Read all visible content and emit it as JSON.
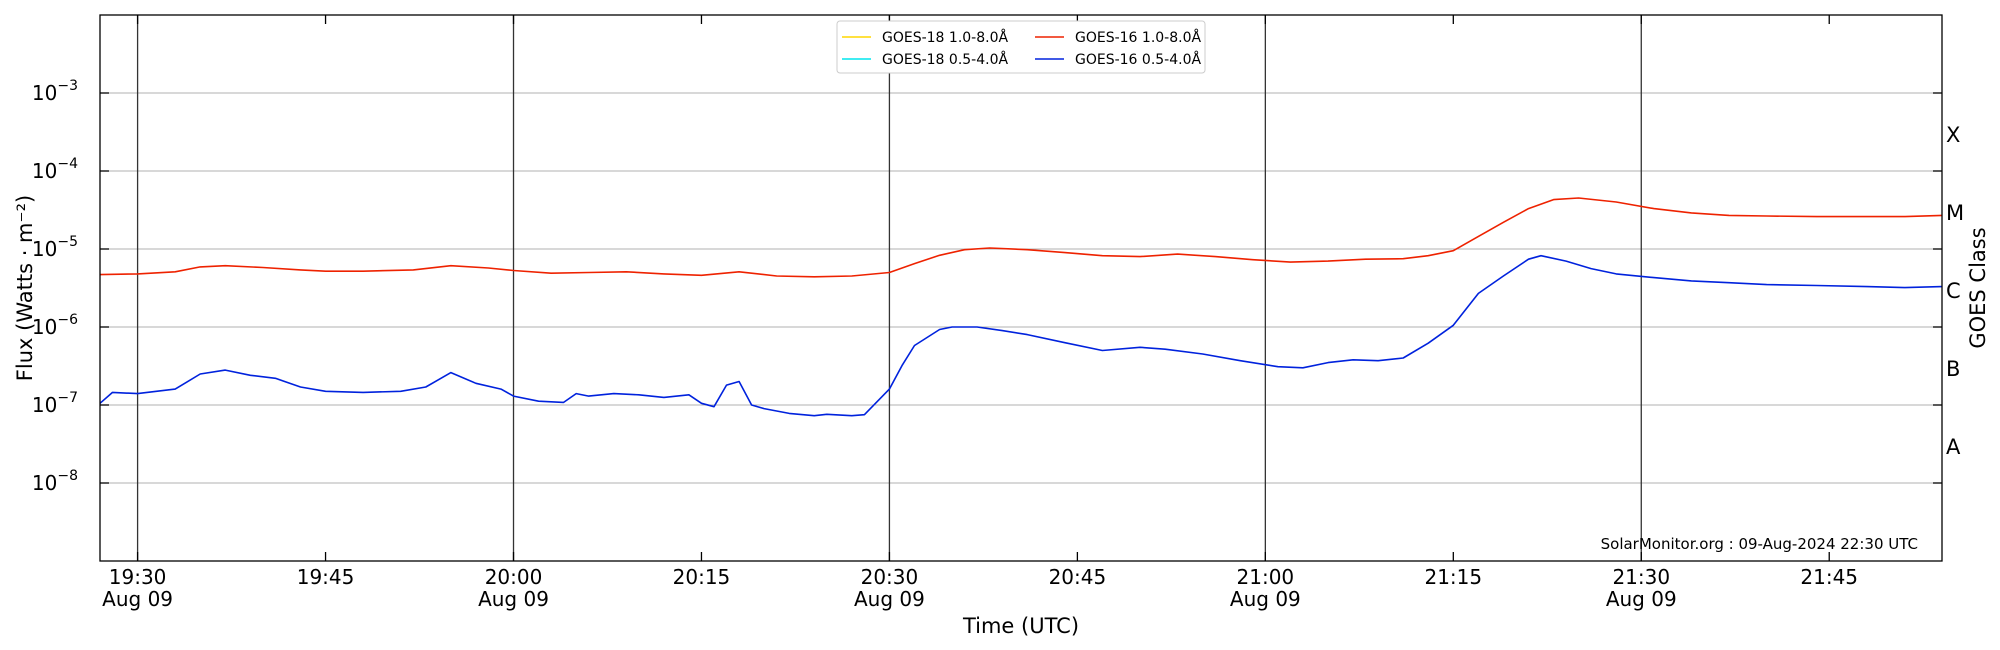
{
  "chart_data": {
    "type": "line",
    "title": "",
    "xlabel": "Time (UTC)",
    "ylabel": "Flux (Watts · m⁻²)",
    "y2label": "GOES Class",
    "yscale": "log",
    "ylim": [
      1e-09,
      0.01
    ],
    "xlim": [
      "19:27",
      "21:54"
    ],
    "grid": "horizontal",
    "legend_position": "top-center",
    "credit": "SolarMonitor.org : 09-Aug-2024 22:30 UTC",
    "x_ticks": [
      {
        "t": "19:30",
        "line1": "19:30",
        "line2": "Aug 09"
      },
      {
        "t": "19:45",
        "line1": "19:45",
        "line2": ""
      },
      {
        "t": "20:00",
        "line1": "20:00",
        "line2": "Aug 09"
      },
      {
        "t": "20:15",
        "line1": "20:15",
        "line2": ""
      },
      {
        "t": "20:30",
        "line1": "20:30",
        "line2": "Aug 09"
      },
      {
        "t": "20:45",
        "line1": "20:45",
        "line2": ""
      },
      {
        "t": "21:00",
        "line1": "21:00",
        "line2": "Aug 09"
      },
      {
        "t": "21:15",
        "line1": "21:15",
        "line2": ""
      },
      {
        "t": "21:30",
        "line1": "21:30",
        "line2": "Aug 09"
      },
      {
        "t": "21:45",
        "line1": "21:45",
        "line2": ""
      }
    ],
    "y_ticks": [
      {
        "value": 1e-08,
        "mantissa": "10",
        "exponent": "−8"
      },
      {
        "value": 1e-07,
        "mantissa": "10",
        "exponent": "−7"
      },
      {
        "value": 1e-06,
        "mantissa": "10",
        "exponent": "−6"
      },
      {
        "value": 1e-05,
        "mantissa": "10",
        "exponent": "−5"
      },
      {
        "value": 0.0001,
        "mantissa": "10",
        "exponent": "−4"
      },
      {
        "value": 0.001,
        "mantissa": "10",
        "exponent": "−3"
      }
    ],
    "day_markers": [
      "19:30",
      "20:00",
      "20:30",
      "21:00",
      "21:30"
    ],
    "goes_classes": [
      {
        "label": "A",
        "value": 3e-08
      },
      {
        "label": "B",
        "value": 3e-07
      },
      {
        "label": "C",
        "value": 3e-06
      },
      {
        "label": "M",
        "value": 3e-05
      },
      {
        "label": "X",
        "value": 0.0003
      }
    ],
    "legend": [
      {
        "name": "GOES-18 1.0-8.0Å",
        "color": "#ffd700"
      },
      {
        "name": "GOES-18 0.5-4.0Å",
        "color": "#00e5ee"
      },
      {
        "name": "GOES-16 1.0-8.0Å",
        "color": "#ee2200"
      },
      {
        "name": "GOES-16 0.5-4.0Å",
        "color": "#0022dd"
      }
    ],
    "series": [
      {
        "name": "GOES-16 1.0-8.0Å",
        "color": "#ee2200",
        "x": [
          "19:27",
          "19:30",
          "19:33",
          "19:35",
          "19:37",
          "19:40",
          "19:43",
          "19:45",
          "19:48",
          "19:52",
          "19:55",
          "19:58",
          "20:00",
          "20:03",
          "20:06",
          "20:09",
          "20:12",
          "20:15",
          "20:18",
          "20:21",
          "20:24",
          "20:27",
          "20:30",
          "20:32",
          "20:34",
          "20:36",
          "20:38",
          "20:41",
          "20:44",
          "20:47",
          "20:50",
          "20:53",
          "20:56",
          "20:59",
          "21:02",
          "21:05",
          "21:08",
          "21:11",
          "21:13",
          "21:15",
          "21:17",
          "21:19",
          "21:21",
          "21:23",
          "21:25",
          "21:28",
          "21:31",
          "21:34",
          "21:37",
          "21:40",
          "21:44",
          "21:48",
          "21:51",
          "21:54"
        ],
        "y": [
          4.7e-06,
          4.8e-06,
          5.1e-06,
          5.9e-06,
          6.1e-06,
          5.8e-06,
          5.4e-06,
          5.2e-06,
          5.2e-06,
          5.4e-06,
          6.1e-06,
          5.7e-06,
          5.3e-06,
          4.9e-06,
          5e-06,
          5.1e-06,
          4.8e-06,
          4.6e-06,
          5.1e-06,
          4.5e-06,
          4.4e-06,
          4.5e-06,
          5e-06,
          6.5e-06,
          8.3e-06,
          9.8e-06,
          1.03e-05,
          9.8e-06,
          9e-06,
          8.2e-06,
          8e-06,
          8.6e-06,
          8e-06,
          7.3e-06,
          6.8e-06,
          7e-06,
          7.4e-06,
          7.5e-06,
          8.2e-06,
          9.5e-06,
          1.45e-05,
          2.2e-05,
          3.3e-05,
          4.3e-05,
          4.5e-05,
          4e-05,
          3.3e-05,
          2.9e-05,
          2.7e-05,
          2.65e-05,
          2.6e-05,
          2.6e-05,
          2.6e-05,
          2.7e-05
        ]
      },
      {
        "name": "GOES-16 0.5-4.0Å",
        "color": "#0022dd",
        "x": [
          "19:27",
          "19:28",
          "19:30",
          "19:33",
          "19:35",
          "19:37",
          "19:39",
          "19:41",
          "19:43",
          "19:45",
          "19:48",
          "19:51",
          "19:53",
          "19:55",
          "19:57",
          "19:59",
          "20:00",
          "20:02",
          "20:04",
          "20:05",
          "20:06",
          "20:08",
          "20:10",
          "20:12",
          "20:14",
          "20:15",
          "20:16",
          "20:17",
          "20:18",
          "20:19",
          "20:20",
          "20:22",
          "20:24",
          "20:25",
          "20:27",
          "20:28",
          "20:30",
          "20:31",
          "20:32",
          "20:34",
          "20:35",
          "20:37",
          "20:39",
          "20:41",
          "20:44",
          "20:47",
          "20:50",
          "20:52",
          "20:55",
          "20:58",
          "21:01",
          "21:03",
          "21:05",
          "21:07",
          "21:09",
          "21:11",
          "21:13",
          "21:15",
          "21:17",
          "21:19",
          "21:21",
          "21:22",
          "21:24",
          "21:26",
          "21:28",
          "21:31",
          "21:34",
          "21:37",
          "21:40",
          "21:44",
          "21:48",
          "21:51",
          "21:54"
        ],
        "y": [
          1.05e-07,
          1.45e-07,
          1.4e-07,
          1.6e-07,
          2.5e-07,
          2.8e-07,
          2.4e-07,
          2.2e-07,
          1.7e-07,
          1.5e-07,
          1.45e-07,
          1.5e-07,
          1.7e-07,
          2.6e-07,
          1.9e-07,
          1.6e-07,
          1.3e-07,
          1.12e-07,
          1.08e-07,
          1.4e-07,
          1.3e-07,
          1.4e-07,
          1.35e-07,
          1.25e-07,
          1.35e-07,
          1.05e-07,
          9.5e-08,
          1.8e-07,
          2e-07,
          1e-07,
          9e-08,
          7.8e-08,
          7.3e-08,
          7.6e-08,
          7.3e-08,
          7.5e-08,
          1.6e-07,
          3.2e-07,
          5.8e-07,
          9.3e-07,
          1e-06,
          1e-06,
          9e-07,
          8e-07,
          6.3e-07,
          5e-07,
          5.5e-07,
          5.2e-07,
          4.5e-07,
          3.7e-07,
          3.1e-07,
          3e-07,
          3.5e-07,
          3.8e-07,
          3.7e-07,
          4e-07,
          6.2e-07,
          1.05e-06,
          2.7e-06,
          4.5e-06,
          7.4e-06,
          8.2e-06,
          7e-06,
          5.6e-06,
          4.8e-06,
          4.3e-06,
          3.9e-06,
          3.7e-06,
          3.5e-06,
          3.4e-06,
          3.3e-06,
          3.2e-06,
          3.3e-06
        ]
      }
    ]
  }
}
